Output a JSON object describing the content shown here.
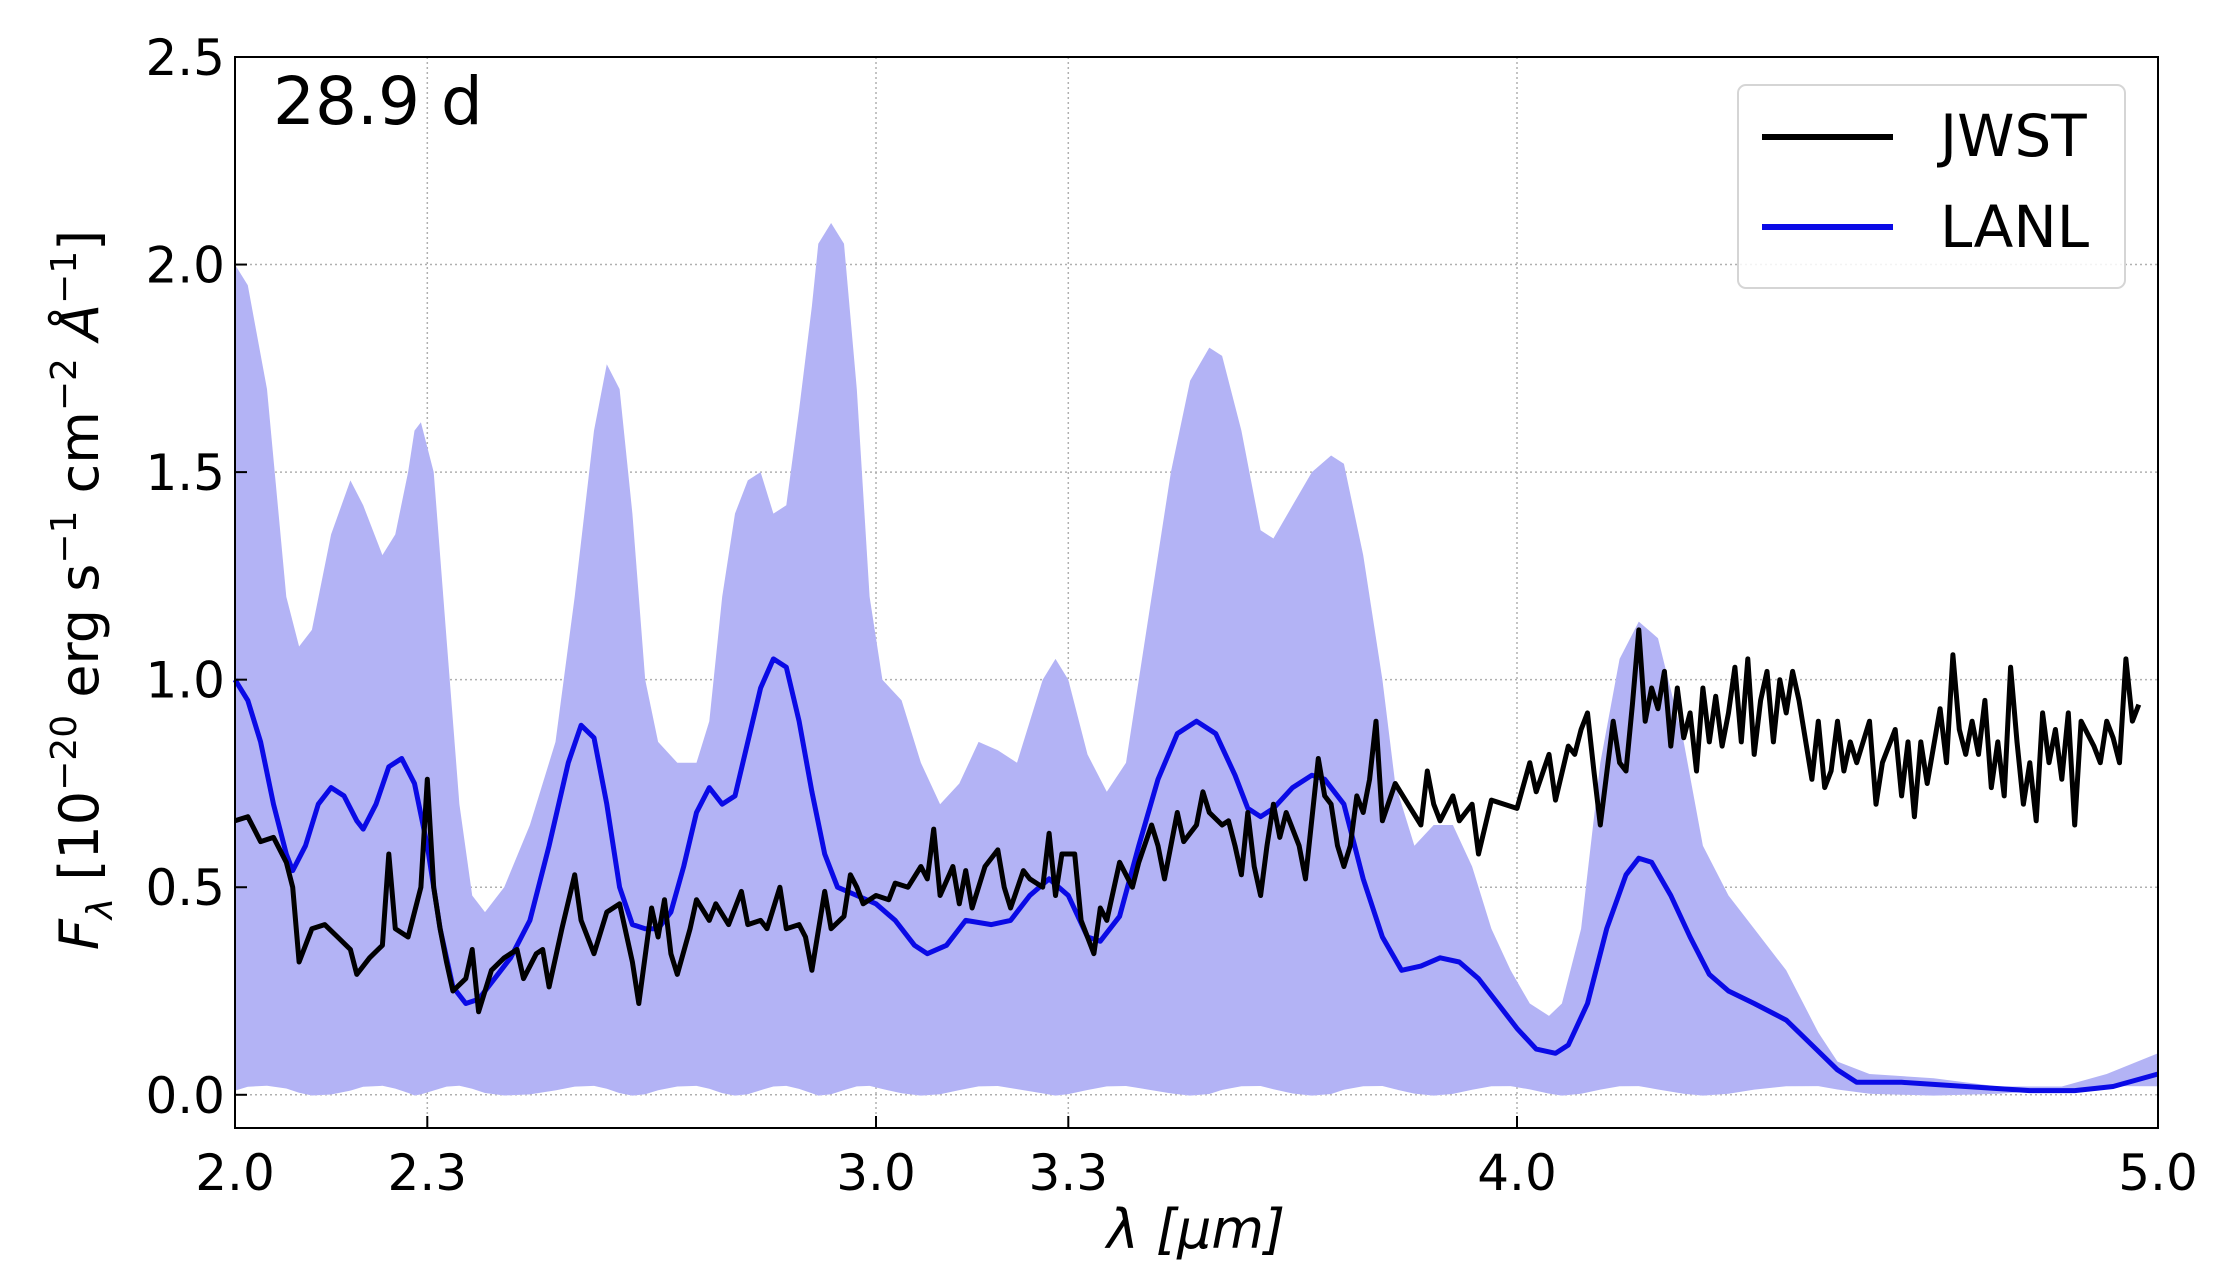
{
  "chart_data": {
    "type": "line",
    "annotation": "28.9 d",
    "xlabel": "λ [μm]",
    "ylabel": {
      "main": "F",
      "sub": "λ",
      "unit_open": " [10",
      "exp1": "−20",
      "erg": " erg s",
      "exp2": "−1",
      "cm": " cm",
      "exp3": "−2",
      "ang": " Å",
      "exp4": "−1",
      "close": "]"
    },
    "xlim": [
      2.0,
      5.0
    ],
    "ylim": [
      -0.08,
      2.5
    ],
    "xticks": [
      2.0,
      2.3,
      3.0,
      3.3,
      4.0,
      5.0
    ],
    "xtick_labels": [
      "2.0",
      "2.3",
      "3.0",
      "3.3",
      "4.0",
      "5.0"
    ],
    "yticks": [
      0.0,
      0.5,
      1.0,
      1.5,
      2.0,
      2.5
    ],
    "ytick_labels": [
      "0.0",
      "0.5",
      "1.0",
      "1.5",
      "2.0",
      "2.5"
    ],
    "grid": true,
    "legend": {
      "placement": "top-right",
      "entries": [
        "JWST",
        "LANL"
      ]
    },
    "colors": {
      "jwst": "#000000",
      "lanl": "#0a0ae6",
      "band": "#b3b3f5"
    },
    "band": {
      "name": "LANL range",
      "x": [
        2.0,
        2.02,
        2.05,
        2.08,
        2.1,
        2.12,
        2.15,
        2.18,
        2.2,
        2.23,
        2.25,
        2.27,
        2.28,
        2.29,
        2.31,
        2.33,
        2.35,
        2.37,
        2.39,
        2.42,
        2.46,
        2.5,
        2.53,
        2.56,
        2.58,
        2.6,
        2.62,
        2.64,
        2.66,
        2.69,
        2.72,
        2.74,
        2.76,
        2.78,
        2.8,
        2.82,
        2.84,
        2.86,
        2.88,
        2.9,
        2.91,
        2.93,
        2.95,
        2.97,
        2.99,
        3.01,
        3.04,
        3.07,
        3.1,
        3.13,
        3.16,
        3.19,
        3.22,
        3.26,
        3.28,
        3.3,
        3.33,
        3.36,
        3.39,
        3.42,
        3.46,
        3.49,
        3.52,
        3.54,
        3.57,
        3.6,
        3.62,
        3.65,
        3.68,
        3.71,
        3.73,
        3.76,
        3.79,
        3.81,
        3.84,
        3.87,
        3.9,
        3.93,
        3.96,
        3.99,
        4.02,
        4.05,
        4.07,
        4.1,
        4.13,
        4.16,
        4.19,
        4.22,
        4.26,
        4.29,
        4.33,
        4.37,
        4.42,
        4.47,
        4.5,
        4.55,
        4.65,
        4.75,
        4.85,
        4.92,
        5.0
      ],
      "upper": [
        2.0,
        1.95,
        1.7,
        1.2,
        1.08,
        1.12,
        1.35,
        1.48,
        1.42,
        1.3,
        1.35,
        1.5,
        1.6,
        1.62,
        1.5,
        1.1,
        0.7,
        0.48,
        0.44,
        0.5,
        0.65,
        0.85,
        1.2,
        1.6,
        1.76,
        1.7,
        1.4,
        1.0,
        0.85,
        0.8,
        0.8,
        0.9,
        1.2,
        1.4,
        1.48,
        1.5,
        1.4,
        1.42,
        1.65,
        1.9,
        2.05,
        2.1,
        2.05,
        1.7,
        1.2,
        1.0,
        0.95,
        0.8,
        0.7,
        0.75,
        0.85,
        0.83,
        0.8,
        1.0,
        1.05,
        1.0,
        0.82,
        0.73,
        0.8,
        1.1,
        1.5,
        1.72,
        1.8,
        1.78,
        1.6,
        1.36,
        1.34,
        1.42,
        1.5,
        1.54,
        1.52,
        1.3,
        1.0,
        0.75,
        0.6,
        0.65,
        0.65,
        0.55,
        0.4,
        0.3,
        0.22,
        0.19,
        0.22,
        0.4,
        0.8,
        1.05,
        1.14,
        1.1,
        0.85,
        0.6,
        0.48,
        0.4,
        0.3,
        0.15,
        0.08,
        0.05,
        0.04,
        0.02,
        0.02,
        0.05,
        0.1
      ],
      "lower": 0.01
    },
    "series": [
      {
        "name": "LANL",
        "x": [
          2.0,
          2.02,
          2.04,
          2.06,
          2.08,
          2.09,
          2.11,
          2.13,
          2.15,
          2.17,
          2.19,
          2.2,
          2.22,
          2.24,
          2.26,
          2.28,
          2.3,
          2.32,
          2.34,
          2.36,
          2.38,
          2.4,
          2.43,
          2.46,
          2.49,
          2.52,
          2.54,
          2.56,
          2.58,
          2.6,
          2.62,
          2.64,
          2.66,
          2.68,
          2.7,
          2.72,
          2.74,
          2.76,
          2.78,
          2.8,
          2.82,
          2.84,
          2.86,
          2.88,
          2.9,
          2.92,
          2.94,
          2.97,
          3.0,
          3.03,
          3.06,
          3.08,
          3.11,
          3.14,
          3.18,
          3.21,
          3.24,
          3.27,
          3.3,
          3.33,
          3.35,
          3.38,
          3.41,
          3.44,
          3.47,
          3.5,
          3.53,
          3.56,
          3.58,
          3.6,
          3.62,
          3.65,
          3.68,
          3.7,
          3.73,
          3.76,
          3.79,
          3.82,
          3.85,
          3.88,
          3.91,
          3.94,
          3.97,
          4.0,
          4.03,
          4.06,
          4.08,
          4.11,
          4.14,
          4.17,
          4.19,
          4.21,
          4.24,
          4.27,
          4.3,
          4.33,
          4.37,
          4.42,
          4.46,
          4.5,
          4.53,
          4.6,
          4.7,
          4.8,
          4.87,
          4.93,
          5.0
        ],
        "y": [
          1.0,
          0.95,
          0.85,
          0.7,
          0.58,
          0.54,
          0.6,
          0.7,
          0.74,
          0.72,
          0.66,
          0.64,
          0.7,
          0.79,
          0.81,
          0.75,
          0.6,
          0.4,
          0.26,
          0.22,
          0.23,
          0.27,
          0.33,
          0.42,
          0.6,
          0.8,
          0.89,
          0.86,
          0.7,
          0.5,
          0.41,
          0.4,
          0.4,
          0.44,
          0.55,
          0.68,
          0.74,
          0.7,
          0.72,
          0.85,
          0.98,
          1.05,
          1.03,
          0.9,
          0.73,
          0.58,
          0.5,
          0.48,
          0.46,
          0.42,
          0.36,
          0.34,
          0.36,
          0.42,
          0.41,
          0.42,
          0.48,
          0.52,
          0.48,
          0.38,
          0.37,
          0.43,
          0.6,
          0.76,
          0.87,
          0.9,
          0.87,
          0.77,
          0.69,
          0.67,
          0.69,
          0.74,
          0.77,
          0.76,
          0.7,
          0.52,
          0.38,
          0.3,
          0.31,
          0.33,
          0.32,
          0.28,
          0.22,
          0.16,
          0.11,
          0.1,
          0.12,
          0.22,
          0.4,
          0.53,
          0.57,
          0.56,
          0.48,
          0.38,
          0.29,
          0.25,
          0.22,
          0.18,
          0.12,
          0.06,
          0.03,
          0.03,
          0.02,
          0.01,
          0.01,
          0.02,
          0.05
        ]
      },
      {
        "name": "JWST",
        "x": [
          2.0,
          2.02,
          2.04,
          2.06,
          2.08,
          2.09,
          2.1,
          2.12,
          2.14,
          2.16,
          2.18,
          2.19,
          2.21,
          2.23,
          2.24,
          2.25,
          2.27,
          2.29,
          2.3,
          2.31,
          2.32,
          2.33,
          2.34,
          2.36,
          2.37,
          2.38,
          2.4,
          2.42,
          2.44,
          2.45,
          2.47,
          2.48,
          2.49,
          2.51,
          2.53,
          2.54,
          2.56,
          2.58,
          2.6,
          2.62,
          2.63,
          2.65,
          2.66,
          2.67,
          2.68,
          2.69,
          2.71,
          2.72,
          2.74,
          2.75,
          2.77,
          2.79,
          2.8,
          2.82,
          2.83,
          2.85,
          2.86,
          2.88,
          2.89,
          2.9,
          2.92,
          2.93,
          2.95,
          2.96,
          2.97,
          2.98,
          3.0,
          3.02,
          3.03,
          3.05,
          3.07,
          3.08,
          3.09,
          3.1,
          3.12,
          3.13,
          3.14,
          3.15,
          3.17,
          3.19,
          3.2,
          3.21,
          3.23,
          3.24,
          3.26,
          3.27,
          3.28,
          3.29,
          3.31,
          3.32,
          3.34,
          3.35,
          3.36,
          3.38,
          3.4,
          3.41,
          3.43,
          3.44,
          3.45,
          3.47,
          3.48,
          3.5,
          3.51,
          3.52,
          3.54,
          3.55,
          3.56,
          3.57,
          3.58,
          3.59,
          3.6,
          3.61,
          3.62,
          3.63,
          3.64,
          3.66,
          3.67,
          3.69,
          3.7,
          3.71,
          3.72,
          3.73,
          3.74,
          3.75,
          3.76,
          3.77,
          3.78,
          3.79,
          3.81,
          3.83,
          3.85,
          3.86,
          3.87,
          3.88,
          3.9,
          3.91,
          3.93,
          3.94,
          3.96,
          3.98,
          4.0,
          4.02,
          4.03,
          4.05,
          4.06,
          4.08,
          4.09,
          4.1,
          4.11,
          4.12,
          4.13,
          4.15,
          4.16,
          4.17,
          4.18,
          4.19,
          4.2,
          4.21,
          4.22,
          4.23,
          4.24,
          4.25,
          4.26,
          4.27,
          4.28,
          4.29,
          4.3,
          4.31,
          4.32,
          4.33,
          4.34,
          4.35,
          4.36,
          4.37,
          4.38,
          4.39,
          4.4,
          4.41,
          4.42,
          4.43,
          4.44,
          4.46,
          4.47,
          4.48,
          4.49,
          4.5,
          4.51,
          4.52,
          4.53,
          4.55,
          4.56,
          4.57,
          4.59,
          4.6,
          4.61,
          4.62,
          4.63,
          4.64,
          4.66,
          4.67,
          4.68,
          4.69,
          4.7,
          4.71,
          4.72,
          4.73,
          4.74,
          4.75,
          4.76,
          4.77,
          4.78,
          4.79,
          4.8,
          4.81,
          4.82,
          4.83,
          4.84,
          4.85,
          4.86,
          4.87,
          4.88,
          4.9,
          4.91,
          4.92,
          4.93,
          4.94,
          4.95,
          4.96,
          4.97
        ],
        "y": [
          0.66,
          0.67,
          0.61,
          0.62,
          0.56,
          0.5,
          0.32,
          0.4,
          0.41,
          0.38,
          0.35,
          0.29,
          0.33,
          0.36,
          0.58,
          0.4,
          0.38,
          0.5,
          0.76,
          0.5,
          0.4,
          0.32,
          0.25,
          0.28,
          0.35,
          0.2,
          0.3,
          0.33,
          0.35,
          0.28,
          0.34,
          0.35,
          0.26,
          0.4,
          0.53,
          0.42,
          0.34,
          0.44,
          0.46,
          0.32,
          0.22,
          0.45,
          0.38,
          0.47,
          0.34,
          0.29,
          0.4,
          0.47,
          0.42,
          0.46,
          0.41,
          0.49,
          0.41,
          0.42,
          0.4,
          0.5,
          0.4,
          0.41,
          0.38,
          0.3,
          0.49,
          0.4,
          0.43,
          0.53,
          0.5,
          0.46,
          0.48,
          0.47,
          0.51,
          0.5,
          0.55,
          0.52,
          0.64,
          0.48,
          0.55,
          0.46,
          0.54,
          0.45,
          0.55,
          0.59,
          0.5,
          0.45,
          0.54,
          0.52,
          0.5,
          0.63,
          0.48,
          0.58,
          0.58,
          0.42,
          0.34,
          0.45,
          0.42,
          0.56,
          0.5,
          0.56,
          0.65,
          0.6,
          0.52,
          0.68,
          0.61,
          0.65,
          0.73,
          0.68,
          0.65,
          0.66,
          0.6,
          0.53,
          0.68,
          0.55,
          0.48,
          0.6,
          0.7,
          0.62,
          0.68,
          0.6,
          0.52,
          0.81,
          0.72,
          0.7,
          0.6,
          0.55,
          0.6,
          0.72,
          0.68,
          0.76,
          0.9,
          0.66,
          0.75,
          0.7,
          0.65,
          0.78,
          0.7,
          0.66,
          0.72,
          0.66,
          0.7,
          0.58,
          0.71,
          0.7,
          0.69,
          0.8,
          0.73,
          0.82,
          0.71,
          0.84,
          0.82,
          0.88,
          0.92,
          0.78,
          0.65,
          0.9,
          0.8,
          0.78,
          0.94,
          1.12,
          0.9,
          0.98,
          0.93,
          1.02,
          0.84,
          0.98,
          0.86,
          0.92,
          0.78,
          0.98,
          0.85,
          0.96,
          0.84,
          0.92,
          1.03,
          0.85,
          1.05,
          0.82,
          0.95,
          1.02,
          0.85,
          1.0,
          0.92,
          1.02,
          0.95,
          0.76,
          0.9,
          0.74,
          0.78,
          0.9,
          0.78,
          0.85,
          0.8,
          0.9,
          0.7,
          0.8,
          0.88,
          0.72,
          0.85,
          0.67,
          0.85,
          0.75,
          0.93,
          0.8,
          1.06,
          0.88,
          0.82,
          0.9,
          0.82,
          0.95,
          0.74,
          0.85,
          0.72,
          1.03,
          0.85,
          0.7,
          0.8,
          0.66,
          0.92,
          0.8,
          0.88,
          0.76,
          0.92,
          0.65,
          0.9,
          0.84,
          0.8,
          0.9,
          0.86,
          0.8,
          1.05,
          0.9,
          0.94
        ]
      }
    ]
  }
}
